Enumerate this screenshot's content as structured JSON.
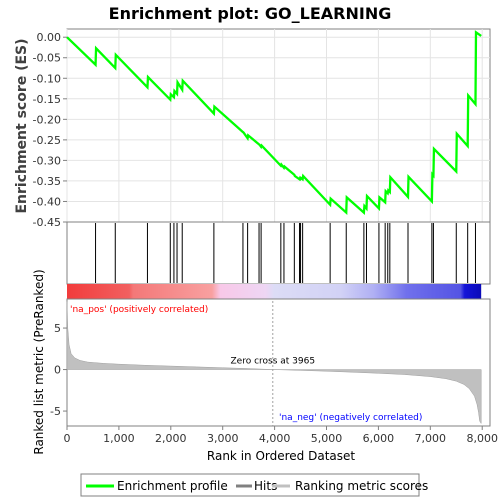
{
  "chart_data": {
    "type": "line",
    "title": "Enrichment plot: GO_LEARNING",
    "es_panel": {
      "ylabel": "Enrichment score (ES)",
      "ylim": [
        -0.45,
        0.02
      ],
      "yticks": [
        "0.00",
        "-0.05",
        "-0.10",
        "-0.15",
        "-0.20",
        "-0.25",
        "-0.30",
        "-0.35",
        "-0.40",
        "-0.45"
      ],
      "ytick_values": [
        0,
        -0.05,
        -0.1,
        -0.15,
        -0.2,
        -0.25,
        -0.3,
        -0.35,
        -0.4,
        -0.45
      ],
      "series": [
        {
          "name": "Enrichment profile",
          "color": "#00ff00",
          "x": [
            0,
            550,
            560,
            930,
            940,
            1550,
            1560,
            1990,
            2000,
            2060,
            2070,
            2120,
            2130,
            2220,
            2230,
            2830,
            2840,
            3390,
            3400,
            3480,
            3490,
            3700,
            3710,
            3740,
            3750,
            4120,
            4130,
            4180,
            4190,
            4380,
            4390,
            4480,
            4490,
            4500,
            4510,
            4540,
            4550,
            5070,
            5080,
            5380,
            5390,
            5720,
            5730,
            5770,
            5780,
            6010,
            6020,
            6130,
            6140,
            6180,
            6190,
            6220,
            6230,
            6570,
            6580,
            7030,
            7040,
            7060,
            7070,
            7500,
            7510,
            7720,
            7730,
            7870,
            7880,
            7980
          ],
          "y": [
            0.0,
            -0.067,
            -0.027,
            -0.075,
            -0.043,
            -0.122,
            -0.097,
            -0.152,
            -0.139,
            -0.146,
            -0.131,
            -0.138,
            -0.11,
            -0.128,
            -0.106,
            -0.186,
            -0.169,
            -0.231,
            -0.232,
            -0.246,
            -0.239,
            -0.261,
            -0.262,
            -0.267,
            -0.264,
            -0.313,
            -0.31,
            -0.318,
            -0.315,
            -0.335,
            -0.338,
            -0.346,
            -0.343,
            -0.345,
            -0.343,
            -0.346,
            -0.338,
            -0.408,
            -0.393,
            -0.427,
            -0.39,
            -0.427,
            -0.411,
            -0.417,
            -0.387,
            -0.417,
            -0.39,
            -0.402,
            -0.375,
            -0.38,
            -0.373,
            -0.377,
            -0.341,
            -0.389,
            -0.34,
            -0.4,
            -0.334,
            -0.337,
            -0.272,
            -0.327,
            -0.235,
            -0.265,
            -0.142,
            -0.163,
            0.012,
            0.003
          ]
        }
      ]
    },
    "hits_panel": {
      "hit_ranks": [
        550,
        930,
        1550,
        1990,
        2060,
        2120,
        2220,
        2830,
        3390,
        3480,
        3700,
        3740,
        4120,
        4180,
        4380,
        4480,
        4500,
        4540,
        5070,
        5380,
        5720,
        5770,
        6010,
        6130,
        6180,
        6220,
        6570,
        7030,
        7060,
        7500,
        7720,
        7870
      ]
    },
    "ranking_panel": {
      "ylabel": "Ranked list metric (PreRanked)",
      "ylim": [
        -6.8,
        8.5
      ],
      "yticks": [
        "5",
        "0",
        "-5"
      ],
      "ytick_values": [
        5,
        0,
        -5
      ],
      "metric_curve": {
        "x": [
          0,
          15,
          40,
          80,
          150,
          250,
          400,
          700,
          1000,
          1500,
          2000,
          2500,
          3000,
          3500,
          3965,
          4500,
          5000,
          5500,
          6000,
          6500,
          7000,
          7300,
          7500,
          7650,
          7750,
          7850,
          7900,
          7930,
          7950,
          7980
        ],
        "y": [
          8.2,
          5.0,
          3.0,
          1.9,
          1.4,
          1.1,
          0.9,
          0.75,
          0.65,
          0.52,
          0.42,
          0.32,
          0.22,
          0.12,
          0.0,
          -0.1,
          -0.2,
          -0.32,
          -0.45,
          -0.6,
          -0.85,
          -1.1,
          -1.4,
          -1.8,
          -2.3,
          -3.2,
          -4.2,
          -5.2,
          -6.2,
          -6.5
        ]
      },
      "zero_cross_label": "Zero cross at 3965",
      "zero_cross": 3965,
      "pos_label": "'na_pos' (positively correlated)",
      "neg_label": "'na_neg' (negatively correlated)",
      "pos_color": "#ff0000",
      "neg_color": "#0000ff"
    },
    "xlabel": "Rank in Ordered Dataset",
    "xlim": [
      0,
      8150
    ],
    "xticks": [
      "0",
      "1,000",
      "2,000",
      "3,000",
      "4,000",
      "5,000",
      "6,000",
      "7,000",
      "8,000"
    ],
    "xtick_values": [
      0,
      1000,
      2000,
      3000,
      4000,
      5000,
      6000,
      7000,
      8000
    ],
    "n_ranked": 7980,
    "legend": [
      {
        "label": "Enrichment profile",
        "color": "#00ff00"
      },
      {
        "label": "Hits",
        "color": "#808080"
      },
      {
        "label": "Ranking metric scores",
        "color": "#c0c0c0"
      }
    ]
  }
}
